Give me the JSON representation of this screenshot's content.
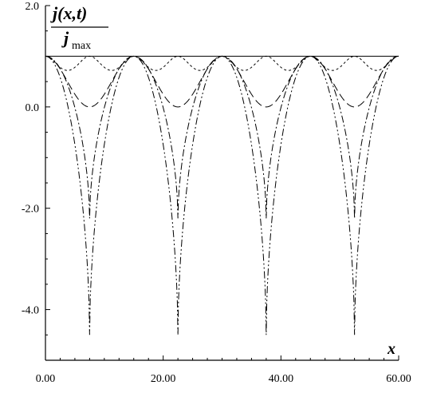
{
  "chart_data": {
    "type": "line",
    "xlabel": "x",
    "ylabel": {
      "numerator": "j(x,t)",
      "denominator_main": "j",
      "denominator_sub": "max"
    },
    "xlim": [
      0,
      60
    ],
    "ylim": [
      -5,
      2
    ],
    "x_ticks": [
      "0.00",
      "20.00",
      "40.00",
      "60.00"
    ],
    "y_ticks": [
      "2.0",
      "0.0",
      "-2.0",
      "-4.0"
    ],
    "x_tick_values": [
      0,
      20,
      40,
      60
    ],
    "y_tick_values": [
      2,
      0,
      -2,
      -4
    ],
    "grid": false,
    "period": 15,
    "series": [
      {
        "style": "solid",
        "min": 1.0,
        "max": 1.0,
        "shape": "constant"
      },
      {
        "style": "long-dash",
        "min": 0.0,
        "max": 1.0,
        "shape": "cos-squared"
      },
      {
        "style": "short-dash",
        "min": 0.5,
        "max": 1.0,
        "shape": "double-hump"
      },
      {
        "style": "dash-dot",
        "min": -2.2,
        "max": 1.0,
        "shape": "deep-well"
      },
      {
        "style": "dash-dot-dot",
        "min": -4.5,
        "max": 1.0,
        "shape": "deep-well"
      }
    ]
  }
}
